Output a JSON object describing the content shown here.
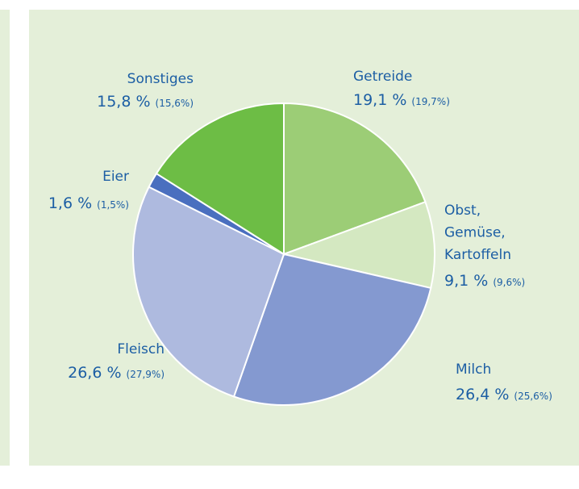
{
  "chart_data": {
    "type": "pie",
    "categories": [
      "Getreide",
      "Obst,\nGemüse,\nKartoffeln",
      "Milch",
      "Fleisch",
      "Eier",
      "Sonstiges"
    ],
    "values": [
      19.1,
      9.1,
      26.4,
      26.6,
      1.6,
      15.8
    ],
    "value_labels": [
      "19,1 %",
      "9,1 %",
      "26,4 %",
      "26,6 %",
      "1,6 %",
      "15,8 %"
    ],
    "secondary_labels": [
      "(19,7%)",
      "(9,6%)",
      "(25,6%)",
      "(27,9%)",
      "(1,5%)",
      "(15,6%)"
    ],
    "colors": [
      "#9ccd76",
      "#d4e8c1",
      "#8499d0",
      "#aebadf",
      "#4a6fbf",
      "#6dbd45"
    ]
  }
}
